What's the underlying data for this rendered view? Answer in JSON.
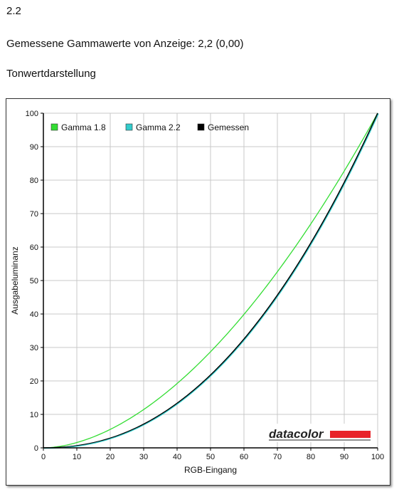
{
  "header": {
    "version": "2.2",
    "measured_text": "Gemessene Gammawerte von Anzeige: 2,2 (0,00)",
    "section_title": "Tonwertdarstellung"
  },
  "logo": {
    "text": "datacolor",
    "bar_color": "#e8232a"
  },
  "chart_data": {
    "type": "line",
    "xlabel": "RGB-Eingang",
    "ylabel": "Ausgabeluminanz",
    "xlim": [
      0,
      100
    ],
    "ylim": [
      0,
      100
    ],
    "xticks": [
      0,
      10,
      20,
      30,
      40,
      50,
      60,
      70,
      80,
      90,
      100
    ],
    "yticks": [
      0,
      10,
      20,
      30,
      40,
      50,
      60,
      70,
      80,
      90,
      100
    ],
    "grid": true,
    "legend_position": "top-left",
    "x": [
      0,
      10,
      20,
      30,
      40,
      50,
      60,
      70,
      80,
      90,
      100
    ],
    "series": [
      {
        "name": "Gamma 1.8",
        "color": "#33dd33",
        "gamma": 1.8,
        "values": [
          0,
          1.6,
          5.5,
          11.5,
          19.2,
          28.7,
          39.9,
          52.6,
          66.9,
          82.7,
          100
        ]
      },
      {
        "name": "Gamma 2.2",
        "color": "#33cccc",
        "gamma": 2.2,
        "values": [
          0,
          0.6,
          2.9,
          7.1,
          13.3,
          21.8,
          32.5,
          45.6,
          61.2,
          79.3,
          100
        ]
      },
      {
        "name": "Gemessen",
        "color": "#000000",
        "gamma": 2.2,
        "values": [
          0,
          0.6,
          2.9,
          7.1,
          13.3,
          21.8,
          32.5,
          45.6,
          61.2,
          79.3,
          100
        ]
      }
    ]
  }
}
